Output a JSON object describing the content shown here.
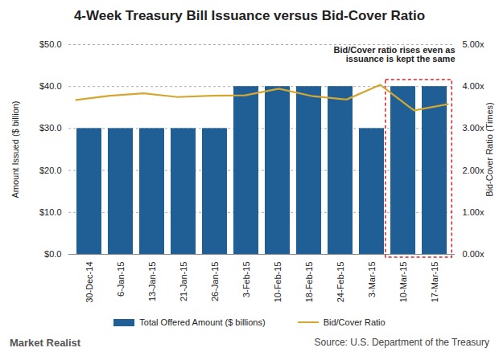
{
  "chart_data": {
    "type": "bar",
    "title": "4-Week Treasury Bill Issuance versus Bid-Cover Ratio",
    "categories": [
      "30-Dec-14",
      "6-Jan-15",
      "13-Jan-15",
      "21-Jan-15",
      "26-Jan-15",
      "3-Feb-15",
      "10-Feb-15",
      "18-Feb-15",
      "24-Feb-15",
      "3-Mar-15",
      "10-Mar-15",
      "17-Mar-15"
    ],
    "series": [
      {
        "name": "Total Offered Amount ($ billions)",
        "type": "bar",
        "color": "#1f5f96",
        "values": [
          30,
          30,
          30,
          30,
          30,
          40,
          40,
          40,
          40,
          30,
          40,
          40
        ]
      },
      {
        "name": "Bid/Cover Ratio",
        "type": "line",
        "axis": "y2",
        "color": "#d4a732",
        "values": [
          3.68,
          3.78,
          3.84,
          3.75,
          3.78,
          3.79,
          3.95,
          3.77,
          3.69,
          4.04,
          3.43,
          3.58
        ]
      }
    ],
    "ylabel": "Amount Issued ($ billion)",
    "ylim": [
      0,
      50
    ],
    "yticks": [
      {
        "value": 0,
        "label": "$0.0"
      },
      {
        "value": 10,
        "label": "$10.0"
      },
      {
        "value": 20,
        "label": "$20.0"
      },
      {
        "value": 30,
        "label": "$30.0"
      },
      {
        "value": 40,
        "label": "$40.0"
      },
      {
        "value": 50,
        "label": "$50.0"
      }
    ],
    "y2label": "Bid-Cover Ratio (Times)",
    "y2lim": [
      0,
      5
    ],
    "y2ticks": [
      {
        "value": 0,
        "label": "0.00x"
      },
      {
        "value": 1,
        "label": "1.00x"
      },
      {
        "value": 2,
        "label": "2.00x"
      },
      {
        "value": 3,
        "label": "3.00x"
      },
      {
        "value": 4,
        "label": "4.00x"
      },
      {
        "value": 5,
        "label": "5.00x"
      }
    ],
    "grid": true,
    "legend": "bottom",
    "annotations": [
      {
        "text": "Bid/Cover ratio rises even as issuance is kept the same",
        "categories": [
          "10-Mar-15",
          "17-Mar-15"
        ],
        "color": "#d0262b"
      }
    ],
    "source": "Source: U.S. Department of the Treasury",
    "watermark": "Market Realist"
  }
}
